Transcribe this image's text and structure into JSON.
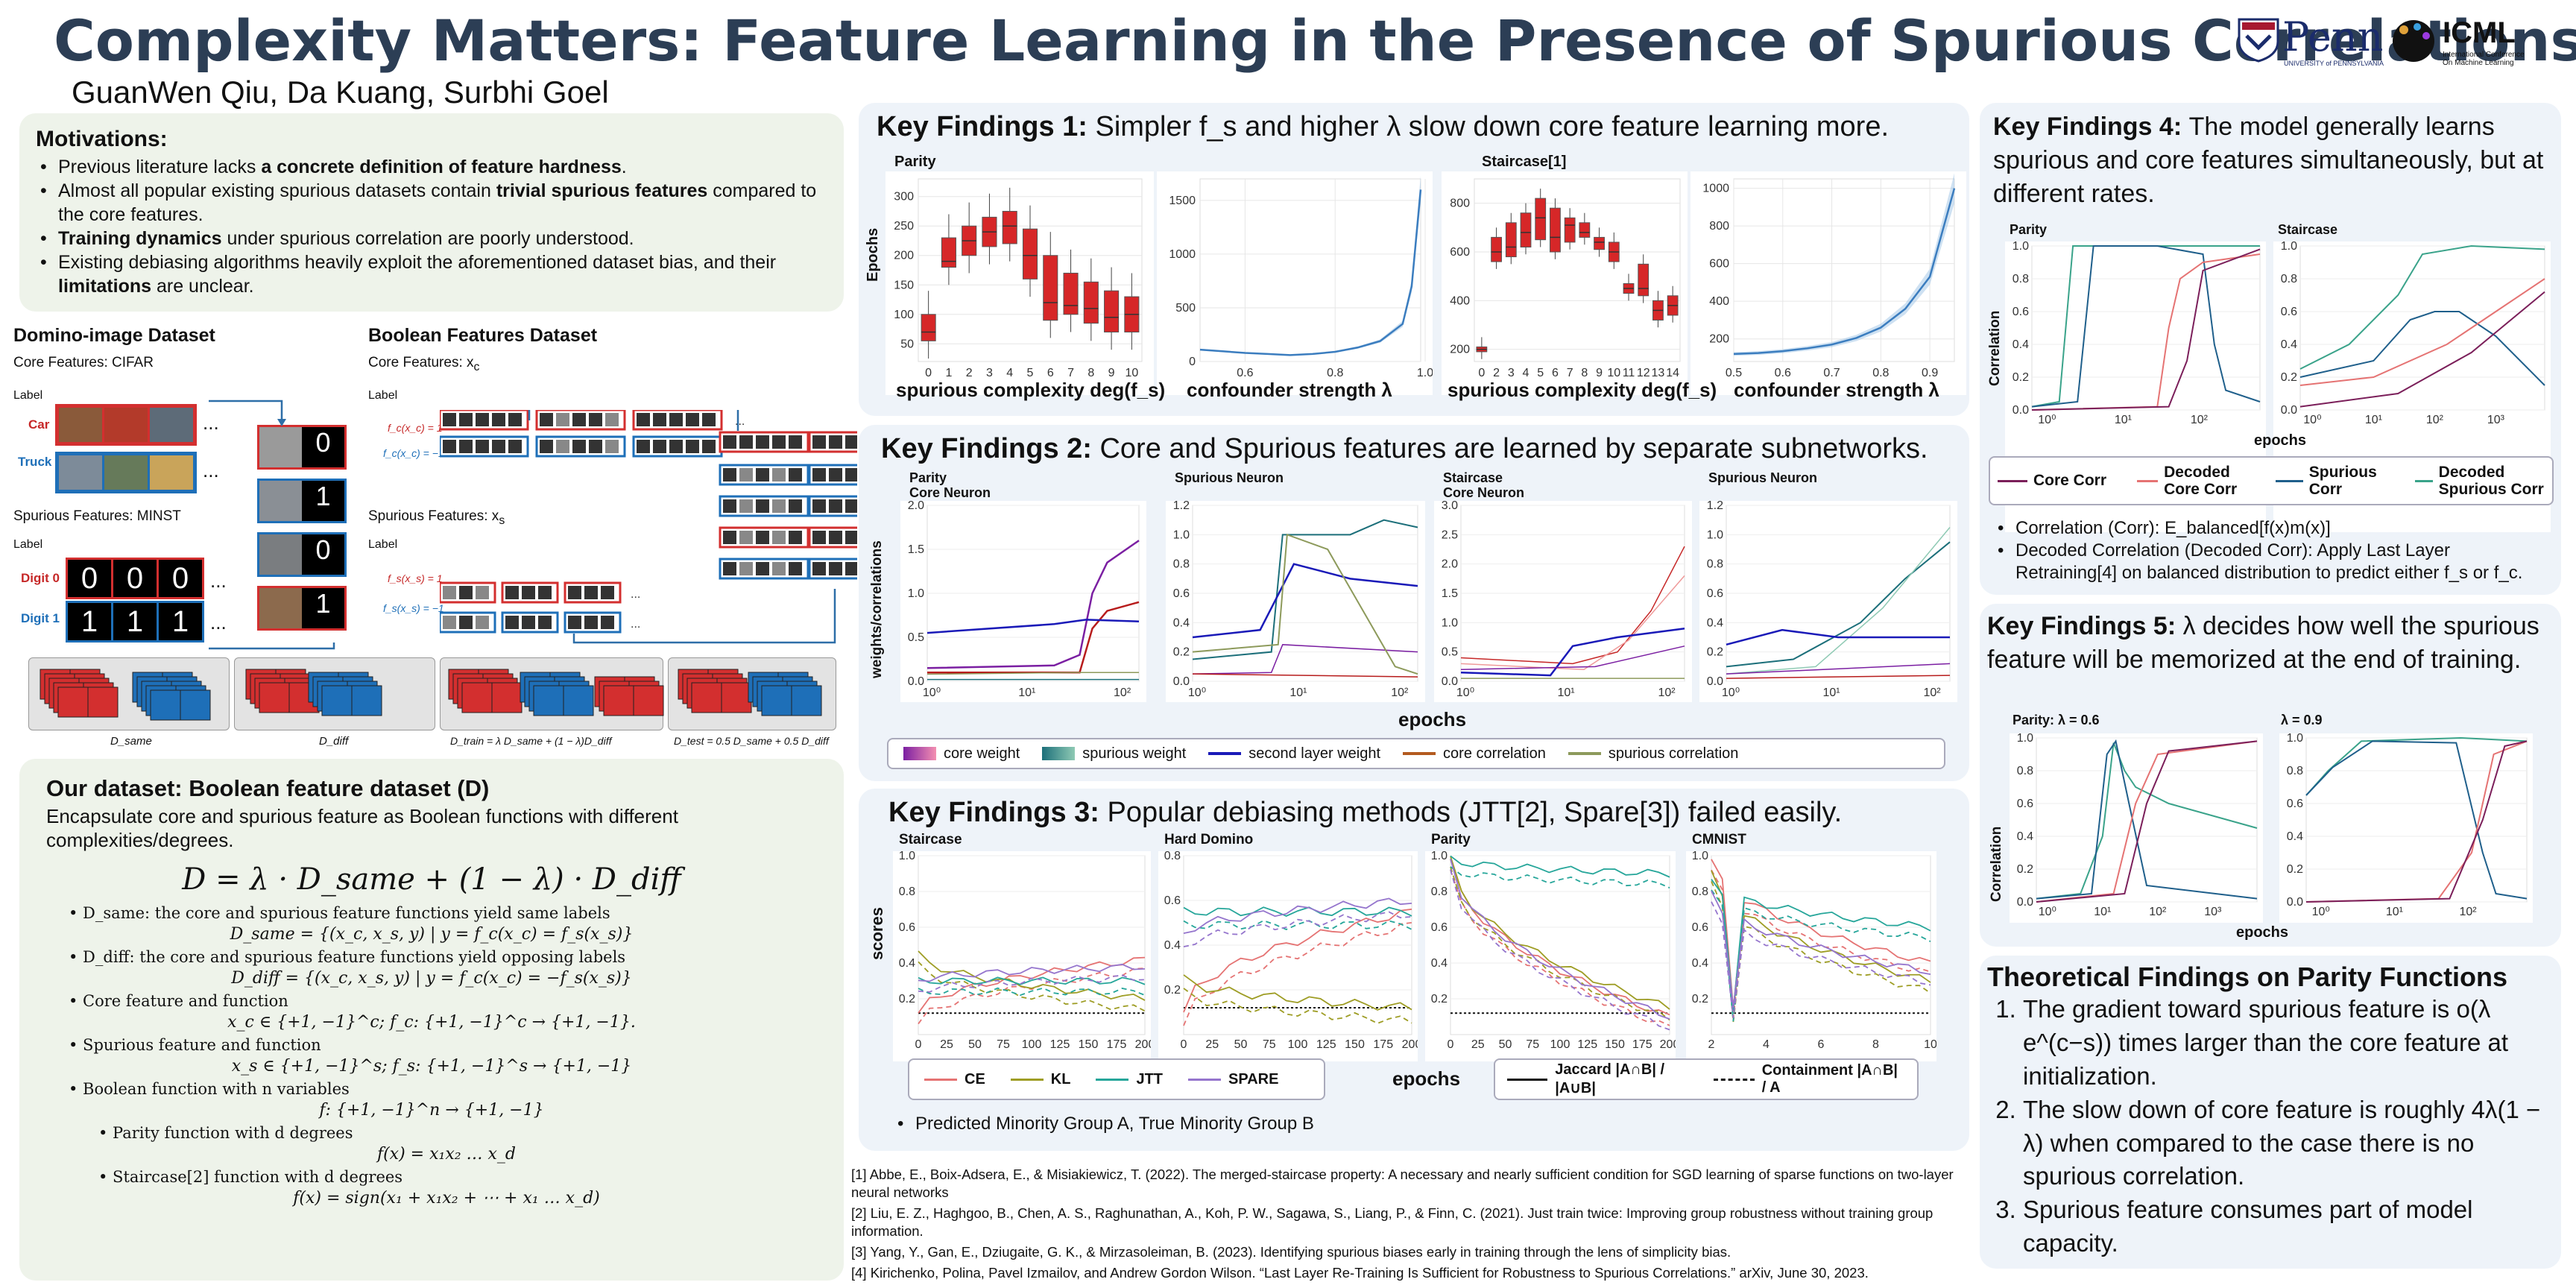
{
  "header": {
    "title": "Complexity Matters: Feature Learning in the Presence of Spurious Correlations",
    "authors": "GuanWen Qiu, Da Kuang, Surbhi Goel",
    "logo_penn": "Penn",
    "logo_penn_sub": "UNIVERSITY of PENNSYLVANIA",
    "logo_icml": "ICML",
    "logo_icml_sub": "International Conference On Machine Learning"
  },
  "motivations": {
    "heading": "Motivations:",
    "items": [
      [
        "Previous literature lacks ",
        "a concrete definition of feature hardness",
        "."
      ],
      [
        "Almost all popular existing spurious datasets contain ",
        "trivial spurious features",
        " compared to the core features."
      ],
      [
        "",
        "Training dynamics",
        " under spurious correlation are poorly understood."
      ],
      [
        "Existing debiasing algorithms heavily exploit the aforementioned dataset bias, and their ",
        "limitations",
        " are unclear."
      ]
    ]
  },
  "datasets": {
    "domino_title": "Domino-image Dataset",
    "domino_core": "Core Features: CIFAR",
    "domino_spur": "Spurious Features: MINST",
    "label": "Label",
    "car": "Car",
    "truck": "Truck",
    "digit0": "Digit 0",
    "digit1": "Digit 1",
    "ellipsis": "...",
    "bool_title": "Boolean Features Dataset",
    "bool_core": "Core Features: x",
    "bool_core_sub": "c",
    "bool_spur": "Spurious Features: x",
    "bool_spur_sub": "s",
    "fc_pos": "f_c(x_c) = 1",
    "fc_neg": "f_c(x_c) = −1",
    "fs_pos": "f_s(x_s) = 1",
    "fs_neg": "f_s(x_s) = −1",
    "d_same": "D_same",
    "d_diff": "D_diff",
    "d_train": "D_train = λ D_same + (1 − λ)D_diff",
    "d_test": "D_test = 0.5 D_same + 0.5 D_diff",
    "glyph_zero": "0",
    "glyph_one": "1"
  },
  "our_dataset": {
    "heading": "Our dataset: Boolean feature dataset (D)",
    "intro": "Encapsulate core and spurious feature as Boolean functions with different complexities/degrees.",
    "main_eq": "D = λ · D_same + (1 − λ) · D_diff",
    "items": [
      {
        "text": "D_same: the core and spurious feature functions yield same labels",
        "eq": "D_same = {(x_c, x_s, y) | y = f_c(x_c) = f_s(x_s)}",
        "indent": 0
      },
      {
        "text": "D_diff: the core and spurious feature functions yield opposing labels",
        "eq": "D_diff = {(x_c, x_s, y) | y = f_c(x_c) = −f_s(x_s)}",
        "indent": 0
      },
      {
        "text": "Core feature and function",
        "eq": "x_c ∈ {+1, −1}^c;  f_c: {+1, −1}^c → {+1, −1}.",
        "indent": 0
      },
      {
        "text": "Spurious feature and function",
        "eq": "x_s ∈ {+1, −1}^s;  f_s: {+1, −1}^s → {+1, −1}",
        "indent": 0
      },
      {
        "text": "Boolean function with n variables",
        "eq": "f: {+1, −1}^n → {+1, −1}",
        "indent": 0
      },
      {
        "text": "Parity function with d degrees",
        "eq": "f(x) = x₁x₂ … x_d",
        "indent": 1
      },
      {
        "text": "Staircase[2] function with d degrees",
        "eq": "f(x) = sign(x₁ + x₁x₂ + ⋯ + x₁ … x_d)",
        "indent": 1
      }
    ]
  },
  "kf1": {
    "title_pre": "Key Findings 1: ",
    "title_rest": "Simpler f_s and higher λ slow down core feature learning more.",
    "parity_label": "Parity",
    "staircase_label": "Staircase[1]",
    "ylabel": "Epochs",
    "xlabel_complexity": "spurious complexity deg(f_s)",
    "xlabel_confounder": "confounder strength λ"
  },
  "kf2": {
    "title_pre": "Key Findings 2: ",
    "title_rest": "Core and Spurious features are learned by separate subnetworks.",
    "panels": [
      "Parity\nCore Neuron",
      "Spurious Neuron",
      "Staircase\nCore Neuron",
      "Spurious Neuron"
    ],
    "ylabel": "weights/correlations",
    "xlabel": "epochs",
    "legend": [
      "core weight",
      "spurious weight",
      "second layer weight",
      "core correlation",
      "spurious correlation"
    ]
  },
  "kf3": {
    "title_pre": "Key Findings 3: ",
    "title_rest": "Popular debiasing methods (JTT[2], Spare[3]) failed easily.",
    "panels": [
      "Staircase",
      "Hard Domino",
      "Parity",
      "CMNIST"
    ],
    "ylabel": "scores",
    "xlabel": "epochs",
    "legend": [
      "CE",
      "KL",
      "JTT",
      "SPARE"
    ],
    "legend2": [
      "Jaccard |A∩B| / |A∪B|",
      "Containment |A∩B| / A"
    ],
    "note": "Predicted Minority Group A, True Minority Group B"
  },
  "kf4": {
    "title_pre": "Key Findings 4: ",
    "title_rest": "The model generally learns spurious and core features simultaneously, but at different rates.",
    "panels": [
      "Parity",
      "Staircase"
    ],
    "ylabel": "Correlation",
    "xlabel": "epochs",
    "legend": [
      "Core Corr",
      "Decoded Core Corr",
      "Spurious Corr",
      "Decoded Spurious Corr"
    ],
    "notes": [
      "Correlation (Corr): E_balanced[f(x)m(x)]",
      "Decoded Correlation (Decoded Corr): Apply Last Layer Retraining[4] on balanced distribution to predict either f_s or f_c."
    ]
  },
  "kf5": {
    "title_pre": "Key Findings 5: ",
    "title_rest": "λ decides how well the spurious feature will be memorized at the end of training.",
    "panels": [
      "Parity: λ = 0.6",
      "λ = 0.9"
    ],
    "ylabel": "Correlation",
    "xlabel": "epochs"
  },
  "theory": {
    "heading": "Theoretical Findings on Parity Functions",
    "items": [
      "The gradient toward spurious feature is o(λ e^(c−s)) times larger than the core feature at initialization.",
      "The slow down of core feature is roughly 4λ(1 − λ) when compared to the case there is no spurious correlation.",
      " Spurious feature consumes part of model capacity."
    ]
  },
  "references": [
    "[1] Abbe, E., Boix-Adsera, E., & Misiakiewicz, T. (2022). The merged-staircase property: A necessary and nearly sufficient condition for SGD learning of sparse functions on two-layer neural networks",
    "[2] Liu, E. Z., Haghgoo, B., Chen, A. S., Raghunathan, A., Koh, P. W., Sagawa, S., Liang, P., & Finn, C. (2021).  Just train twice: Improving group robustness without training group information.",
    "[3] Yang, Y., Gan, E., Dziugaite, G. K., & Mirzasoleiman, B. (2023). Identifying spurious biases early in training through the lens of simplicity bias.",
    "[4] Kirichenko, Polina, Pavel Izmailov, and Andrew Gordon Wilson. “Last Layer Re-Training Is Sufficient for Robustness to Spurious Correlations.” arXiv, June 30, 2023."
  ],
  "chart_data": [
    {
      "type": "box",
      "panel": "Key Findings 1 - Parity",
      "xlabel": "spurious complexity deg(f_s)",
      "ylabel": "Epochs",
      "categories": [
        "0",
        "1",
        "2",
        "3",
        "4",
        "5",
        "6",
        "7",
        "8",
        "9",
        "10"
      ],
      "box_q1": [
        55,
        180,
        200,
        215,
        220,
        160,
        90,
        100,
        85,
        70,
        70
      ],
      "box_median": [
        70,
        190,
        225,
        240,
        250,
        200,
        120,
        115,
        110,
        95,
        100
      ],
      "box_q3": [
        100,
        230,
        250,
        265,
        275,
        245,
        200,
        170,
        155,
        140,
        130
      ],
      "ylim": [
        20,
        330
      ],
      "yticks": [
        50,
        100,
        150,
        200,
        250,
        300
      ]
    },
    {
      "type": "line",
      "panel": "Key Findings 1 - Parity confounder",
      "xlabel": "confounder strength λ",
      "x": [
        0.5,
        0.55,
        0.6,
        0.65,
        0.7,
        0.75,
        0.8,
        0.85,
        0.9,
        0.95,
        0.97,
        0.99
      ],
      "y": [
        110,
        95,
        80,
        70,
        60,
        70,
        90,
        130,
        190,
        350,
        700,
        1600
      ],
      "ylim": [
        0,
        1700
      ],
      "yticks": [
        0,
        500,
        1000,
        1500
      ],
      "xticks": [
        "0.6",
        "0.8",
        "1.0"
      ]
    },
    {
      "type": "box",
      "panel": "Key Findings 1 - Staircase",
      "xlabel": "spurious complexity deg(f_s)",
      "categories": [
        "0",
        "2",
        "3",
        "4",
        "5",
        "6",
        "7",
        "8",
        "9",
        "10",
        "11",
        "12",
        "13",
        "14"
      ],
      "box_q1": [
        190,
        560,
        580,
        620,
        650,
        600,
        640,
        660,
        610,
        560,
        430,
        420,
        320,
        340
      ],
      "box_median": [
        200,
        600,
        620,
        680,
        740,
        660,
        710,
        680,
        640,
        600,
        450,
        450,
        360,
        380
      ],
      "box_q3": [
        210,
        660,
        720,
        760,
        820,
        780,
        740,
        720,
        660,
        640,
        470,
        550,
        400,
        420
      ],
      "ylim": [
        150,
        900
      ],
      "yticks": [
        200,
        400,
        600,
        800
      ]
    },
    {
      "type": "line",
      "panel": "Key Findings 1 - Staircase confounder",
      "xlabel": "confounder strength λ",
      "x": [
        0.5,
        0.55,
        0.6,
        0.65,
        0.7,
        0.75,
        0.8,
        0.85,
        0.9,
        0.95
      ],
      "y": [
        120,
        125,
        135,
        150,
        170,
        205,
        260,
        360,
        530,
        1000
      ],
      "ylim": [
        80,
        1050
      ],
      "yticks": [
        200,
        400,
        600,
        800,
        1000
      ],
      "xticks": [
        "0.5",
        "0.6",
        "0.7",
        "0.8",
        "0.9"
      ]
    }
  ]
}
